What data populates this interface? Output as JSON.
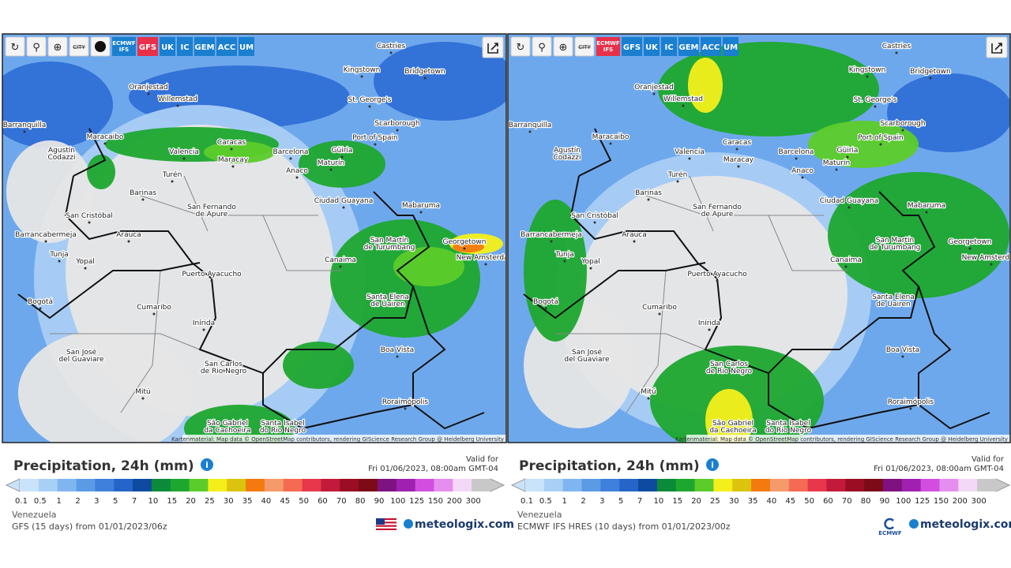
{
  "panels": [
    {
      "tools": [
        "CITY"
      ],
      "models": [
        {
          "label": "ECMWF IFS",
          "color": "#1b7fd0"
        },
        {
          "label": "GFS",
          "color": "#e8304a"
        },
        {
          "label": "UK",
          "color": "#1b7fd0"
        },
        {
          "label": "IC",
          "color": "#1b7fd0"
        },
        {
          "label": "GEM",
          "color": "#1b7fd0"
        },
        {
          "label": "ACC",
          "color": "#1b7fd0"
        },
        {
          "label": "UM",
          "color": "#1b7fd0"
        }
      ],
      "legend_title": "Precipitation, 24h (mm)",
      "valid_label": "Valid for",
      "valid_time": "Fri 01/06/2023, 08:00am GMT-04",
      "region": "Venezuela",
      "model_run": "GFS (15 days) from 01/01/2023/06z",
      "brand": "meteologix.com"
    },
    {
      "tools": [
        "CITY"
      ],
      "models": [
        {
          "label": "ECMWF IFS",
          "color": "#e8304a"
        },
        {
          "label": "GFS",
          "color": "#1b7fd0"
        },
        {
          "label": "UK",
          "color": "#1b7fd0"
        },
        {
          "label": "IC",
          "color": "#1b7fd0"
        },
        {
          "label": "GEM",
          "color": "#1b7fd0"
        },
        {
          "label": "ACC",
          "color": "#1b7fd0"
        },
        {
          "label": "UM",
          "color": "#1b7fd0"
        }
      ],
      "legend_title": "Precipitation, 24h (mm)",
      "valid_label": "Valid for",
      "valid_time": "Fri 01/06/2023, 08:00am GMT-04",
      "region": "Venezuela",
      "model_run": "ECMWF IFS HRES (10 days) from 01/01/2023/00z",
      "brand": "meteologix.com",
      "brand_mark": "ECMWF"
    }
  ],
  "cities": [
    "Castries",
    "Kingstown",
    "Bridgetown",
    "Oranjestad",
    "Willemstad",
    "St. George's",
    "Scarborough",
    "Maracaibo",
    "Caracas",
    "Port of Spain",
    "Barcelona",
    "Güiria",
    "Agustín Codazzi",
    "Valencia",
    "Maracay",
    "Maturín",
    "Anaco",
    "Turén",
    "Barinas",
    "Ciudad Guayana",
    "Mabaruma",
    "San Fernando de Apure",
    "San Cristóbal",
    "Barrancabermeja",
    "Arauca",
    "San Martín de Turumbang",
    "Georgetown",
    "New Amsterdam",
    "Canaima",
    "Tunja",
    "Yopal",
    "Puerto Ayacucho",
    "Santa Elena de Uairen",
    "Bogotá",
    "Cumaribo",
    "Inírida",
    "San José del Guaviare",
    "Boa Vista",
    "San Carlos de Rio Negro",
    "Mitú",
    "Roraimópolis",
    "São Gabriel da Cachoeira",
    "Santa Isabel do Rio Negro",
    "Barranquilla"
  ],
  "attribution": "Kartenmaterial: Map data © OpenStreetMap contributors, rendering GIScience Research Group @ Heidelberg University",
  "scale": [
    0.1,
    0.5,
    1,
    2,
    3,
    5,
    7,
    10,
    15,
    20,
    25,
    30,
    35,
    40,
    45,
    50,
    60,
    70,
    80,
    90,
    100,
    125,
    150,
    200,
    300
  ],
  "scale_colors": [
    "#c9e3fb",
    "#a8d0f6",
    "#80b6ef",
    "#5b9be6",
    "#3e80dc",
    "#2564c8",
    "#0d4aa0",
    "#0b8a3a",
    "#1ea72f",
    "#5ccc2a",
    "#f4ef1a",
    "#dcc40e",
    "#f47a0f",
    "#f59a6a",
    "#f46a52",
    "#e8374b",
    "#c3193a",
    "#9b0d23",
    "#7c0b17",
    "#7e1280",
    "#a020b0",
    "#d34ee0",
    "#e68ef0",
    "#f4d8f7",
    "#c8c8c8"
  ]
}
